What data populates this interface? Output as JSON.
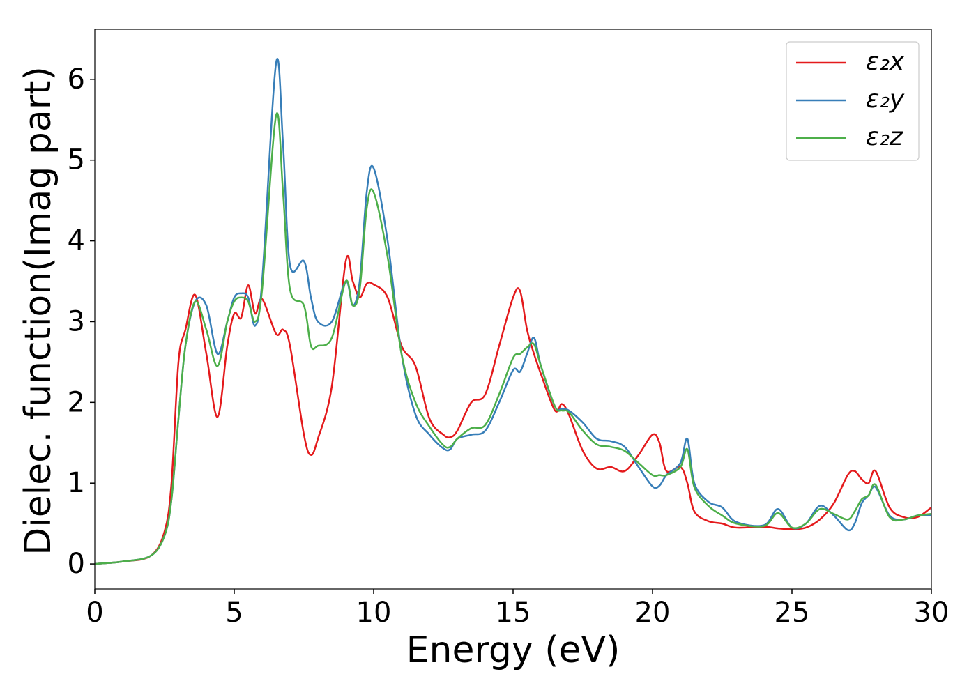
{
  "chart_data": {
    "type": "line",
    "xlabel": "Energy (eV)",
    "ylabel": "Dielec. function(Imag part)",
    "x": [
      0,
      1,
      2,
      2.5,
      2.75,
      3,
      3.25,
      3.6,
      4,
      4.4,
      4.75,
      5,
      5.25,
      5.5,
      5.75,
      6,
      6.5,
      6.75,
      7,
      7.5,
      7.75,
      8,
      8.5,
      9,
      9.25,
      9.5,
      9.75,
      10,
      10.5,
      11,
      11.5,
      12,
      12.5,
      12.75,
      13,
      13.5,
      14,
      14.5,
      15,
      15.25,
      15.5,
      15.75,
      16,
      16.5,
      16.75,
      17,
      17.5,
      18,
      18.5,
      19,
      19.5,
      20,
      20.25,
      20.5,
      21,
      21.25,
      21.5,
      22,
      22.5,
      23,
      24,
      24.5,
      25,
      25.5,
      26,
      26.5,
      27,
      27.25,
      27.5,
      27.75,
      28,
      28.5,
      29,
      29.5,
      30
    ],
    "series": [
      {
        "name": "ε₂x",
        "color": "#e41a1c",
        "values": [
          0,
          0.03,
          0.1,
          0.4,
          1.0,
          2.5,
          2.9,
          3.33,
          2.6,
          1.82,
          2.7,
          3.1,
          3.05,
          3.45,
          3.1,
          3.28,
          2.85,
          2.9,
          2.7,
          1.6,
          1.35,
          1.55,
          2.2,
          3.75,
          3.5,
          3.3,
          3.47,
          3.46,
          3.3,
          2.7,
          2.45,
          1.8,
          1.6,
          1.57,
          1.65,
          2.0,
          2.1,
          2.7,
          3.3,
          3.38,
          2.9,
          2.6,
          2.35,
          1.9,
          1.98,
          1.85,
          1.4,
          1.18,
          1.2,
          1.15,
          1.35,
          1.6,
          1.5,
          1.15,
          1.2,
          1.0,
          0.65,
          0.53,
          0.5,
          0.45,
          0.46,
          0.44,
          0.43,
          0.45,
          0.55,
          0.75,
          1.1,
          1.15,
          1.05,
          1.0,
          1.15,
          0.7,
          0.58,
          0.58,
          0.7
        ]
      },
      {
        "name": "ε₂y",
        "color": "#377eb8",
        "values": [
          0,
          0.03,
          0.1,
          0.35,
          0.8,
          1.8,
          2.7,
          3.25,
          3.2,
          2.6,
          3.0,
          3.3,
          3.35,
          3.3,
          2.95,
          3.5,
          6.2,
          5.2,
          3.7,
          3.75,
          3.3,
          3.0,
          3.0,
          3.5,
          3.2,
          3.5,
          4.6,
          4.9,
          4.0,
          2.6,
          1.85,
          1.6,
          1.43,
          1.42,
          1.55,
          1.6,
          1.65,
          2.0,
          2.4,
          2.38,
          2.6,
          2.8,
          2.45,
          1.95,
          1.92,
          1.9,
          1.75,
          1.55,
          1.52,
          1.45,
          1.2,
          0.96,
          0.97,
          1.1,
          1.25,
          1.55,
          1.0,
          0.77,
          0.7,
          0.52,
          0.48,
          0.68,
          0.45,
          0.5,
          0.72,
          0.6,
          0.42,
          0.5,
          0.75,
          0.85,
          0.95,
          0.6,
          0.55,
          0.6,
          0.6
        ]
      },
      {
        "name": "ε₂z",
        "color": "#4daf4a",
        "values": [
          0,
          0.03,
          0.1,
          0.35,
          0.8,
          1.8,
          2.7,
          3.25,
          2.9,
          2.45,
          3.0,
          3.25,
          3.3,
          3.25,
          3.0,
          3.4,
          5.55,
          4.6,
          3.4,
          3.2,
          2.7,
          2.7,
          2.8,
          3.5,
          3.2,
          3.4,
          4.4,
          4.6,
          3.8,
          2.6,
          2.0,
          1.7,
          1.47,
          1.45,
          1.55,
          1.68,
          1.72,
          2.1,
          2.55,
          2.6,
          2.68,
          2.72,
          2.45,
          1.95,
          1.9,
          1.88,
          1.65,
          1.48,
          1.45,
          1.4,
          1.25,
          1.1,
          1.1,
          1.1,
          1.2,
          1.42,
          0.95,
          0.72,
          0.6,
          0.5,
          0.47,
          0.63,
          0.45,
          0.5,
          0.68,
          0.62,
          0.55,
          0.65,
          0.8,
          0.85,
          0.98,
          0.58,
          0.55,
          0.6,
          0.62
        ]
      }
    ],
    "xlim": [
      0,
      30
    ],
    "xticks": [
      0,
      5,
      10,
      15,
      20,
      25,
      30
    ],
    "ylim": [
      -0.31,
      6.62
    ],
    "yticks": [
      0,
      1,
      2,
      3,
      4,
      5,
      6
    ],
    "grid": false,
    "legend": "upper right"
  }
}
